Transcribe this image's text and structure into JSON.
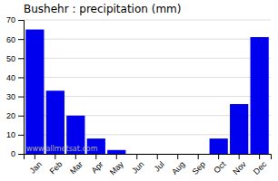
{
  "chart_data": {
    "type": "bar",
    "title": "Bushehr : precipitation (mm)",
    "categories": [
      "Jan",
      "Feb",
      "Mar",
      "Apr",
      "May",
      "Jun",
      "Jul",
      "Aug",
      "Sep",
      "Oct",
      "Nov",
      "Dec"
    ],
    "values": [
      65,
      33,
      20,
      8,
      2,
      0,
      0,
      0,
      0,
      8,
      26,
      61
    ],
    "color": "#0000ee",
    "ylim": [
      0,
      70
    ],
    "yticks": [
      0,
      10,
      20,
      30,
      40,
      50,
      60,
      70
    ],
    "grid": true,
    "annotation": "www.allmetsat.com"
  }
}
